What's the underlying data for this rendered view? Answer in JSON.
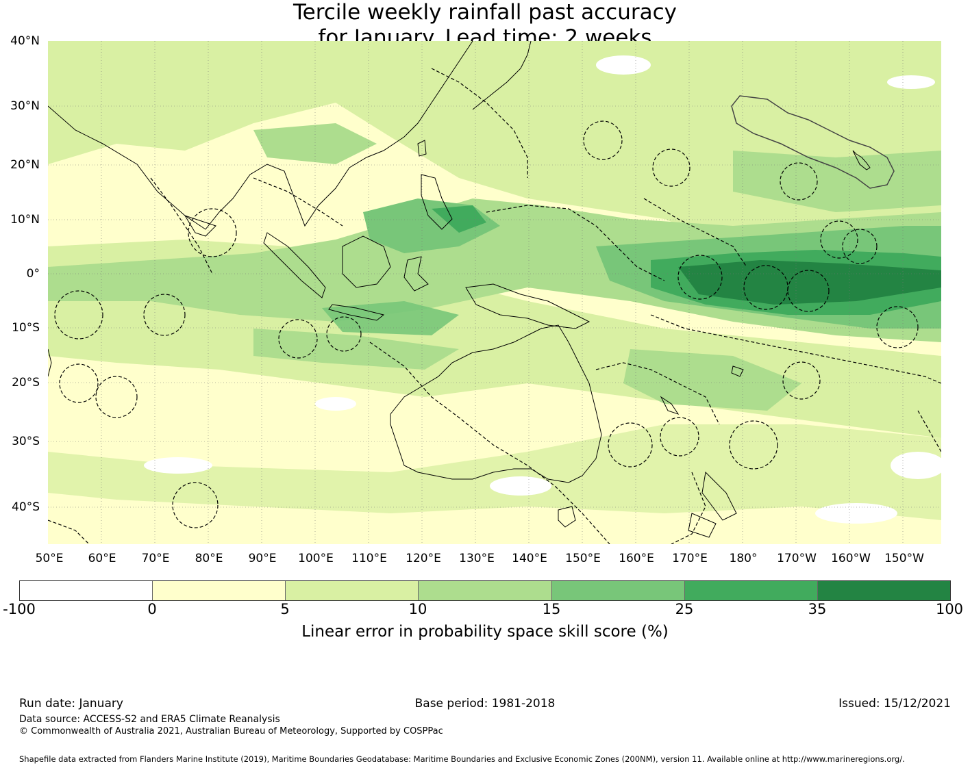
{
  "title_line1": "Tercile weekly rainfall past accuracy",
  "title_line2": "for January. Lead time: 2 weeks",
  "map": {
    "lat_labels": [
      "40°N",
      "30°N",
      "20°N",
      "10°N",
      "0°",
      "10°S",
      "20°S",
      "30°S",
      "40°S"
    ],
    "lon_labels": [
      "50°E",
      "60°E",
      "70°E",
      "80°E",
      "90°E",
      "100°E",
      "110°E",
      "120°E",
      "130°E",
      "140°E",
      "150°E",
      "160°E",
      "170°E",
      "180°",
      "170°W",
      "160°W",
      "150°W"
    ],
    "lat_values": [
      40,
      30,
      20,
      10,
      0,
      -10,
      -20,
      -30,
      -40
    ],
    "lon_values": [
      50,
      60,
      70,
      80,
      90,
      100,
      110,
      120,
      130,
      140,
      150,
      160,
      170,
      180,
      190,
      200,
      210
    ]
  },
  "colorbar": {
    "ticks": [
      "-100",
      "0",
      "5",
      "10",
      "15",
      "25",
      "35",
      "100"
    ],
    "colors": [
      "#ffffff",
      "#ffffcc",
      "#d9f0a3",
      "#addd8e",
      "#78c679",
      "#41ab5d",
      "#238443"
    ],
    "label": "Linear error in probability space skill score (%)"
  },
  "footer": {
    "run_date": "Run date: January",
    "base_period": "Base period: 1981-2018",
    "issued": "Issued: 15/12/2021",
    "data_source": "Data source: ACCESS-S2 and ERA5 Climate Reanalysis",
    "copyright": "© Commonwealth of Australia 2021, Australian Bureau of Meteorology, Supported by COSPPac",
    "shapefile_credit": "Shapefile data extracted from Flanders Marine Institute (2019), Maritime Boundaries Geodatabase: Maritime Boundaries and Exclusive Economic Zones (200NM), version 11. Available online at http://www.marineregions.org/."
  }
}
